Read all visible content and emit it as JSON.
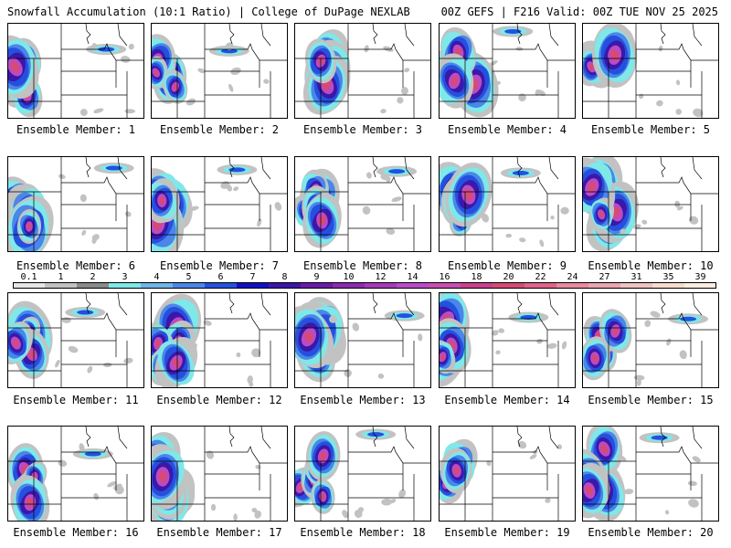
{
  "header": {
    "left": "Snowfall Accumulation (10:1 Ratio) | College of DuPage NEXLAB",
    "right": "00Z GEFS | F216 Valid: 00Z TUE NOV 25 2025"
  },
  "colorbar": {
    "labels": [
      "0.1",
      "1",
      "2",
      "3",
      "4",
      "5",
      "6",
      "7",
      "8",
      "9",
      "10",
      "12",
      "14",
      "16",
      "18",
      "20",
      "22",
      "24",
      "27",
      "31",
      "35",
      "39"
    ],
    "colors": [
      "#e6e6e6",
      "#c2c2c2",
      "#8a8a8a",
      "#7fe8e8",
      "#6fb5e8",
      "#4b86e8",
      "#2450e0",
      "#1010c8",
      "#3b18a8",
      "#6a1ba8",
      "#8a2bb0",
      "#a53bb8",
      "#b94bc8",
      "#c64fb4",
      "#cc3f8e",
      "#d64a76",
      "#e0638a",
      "#e88aa0",
      "#eaa6b0",
      "#f0c2c2",
      "#f5dccc",
      "#fbeee0"
    ]
  },
  "members": [
    {
      "label": "Ensemble Member: 1"
    },
    {
      "label": "Ensemble Member: 2"
    },
    {
      "label": "Ensemble Member: 3"
    },
    {
      "label": "Ensemble Member: 4"
    },
    {
      "label": "Ensemble Member: 5"
    },
    {
      "label": "Ensemble Member: 6"
    },
    {
      "label": "Ensemble Member: 7"
    },
    {
      "label": "Ensemble Member: 8"
    },
    {
      "label": "Ensemble Member: 9"
    },
    {
      "label": "Ensemble Member: 10"
    },
    {
      "label": "Ensemble Member: 11"
    },
    {
      "label": "Ensemble Member: 12"
    },
    {
      "label": "Ensemble Member: 13"
    },
    {
      "label": "Ensemble Member: 14"
    },
    {
      "label": "Ensemble Member: 15"
    },
    {
      "label": "Ensemble Member: 16"
    },
    {
      "label": "Ensemble Member: 17"
    },
    {
      "label": "Ensemble Member: 18"
    },
    {
      "label": "Ensemble Member: 19"
    },
    {
      "label": "Ensemble Member: 20"
    }
  ]
}
